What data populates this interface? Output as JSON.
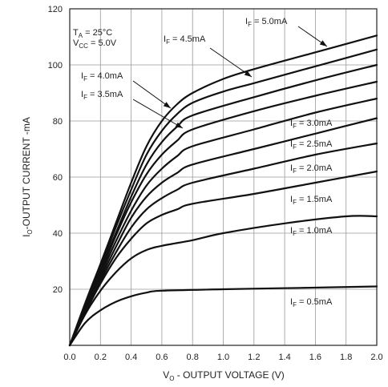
{
  "chart_data": {
    "type": "line",
    "xlabel": {
      "main": "V",
      "sub": "O",
      "rest": " - OUTPUT VOLTAGE (V)"
    },
    "ylabel": {
      "main": "I",
      "sub": "O",
      "rest": "-OUTPUT CURRENT -mA"
    },
    "xlim": [
      0,
      2.0
    ],
    "ylim": [
      0,
      120
    ],
    "x_ticks": [
      "0.0",
      "0.2",
      "0.4",
      "0.6",
      "0.8",
      "1.0",
      "1.2",
      "1.4",
      "1.6",
      "1.8",
      "2.0"
    ],
    "y_ticks": [
      "20",
      "40",
      "60",
      "80",
      "100",
      "120"
    ],
    "grid": true,
    "conditions": [
      {
        "main": "T",
        "sub": "A",
        "rest": " = 25°C"
      },
      {
        "main": "V",
        "sub": "CC",
        "rest": " = 5.0V"
      }
    ],
    "series": [
      {
        "name": {
          "main": "I",
          "sub": "F",
          "rest": " = 0.5mA"
        },
        "x": [
          0,
          0.1,
          0.2,
          0.3,
          0.4,
          0.5,
          0.6,
          1.0,
          1.5,
          2.0
        ],
        "y": [
          0,
          8,
          12.5,
          15.5,
          17.5,
          18.8,
          19.5,
          20,
          20.5,
          21
        ]
      },
      {
        "name": {
          "main": "I",
          "sub": "F",
          "rest": " = 1.0mA"
        },
        "x": [
          0,
          0.1,
          0.2,
          0.3,
          0.4,
          0.5,
          0.6,
          0.8,
          1.0,
          1.4,
          1.8,
          2.0
        ],
        "y": [
          0,
          11,
          19.5,
          26,
          31,
          34,
          35.5,
          37.5,
          40,
          43.5,
          46,
          46
        ]
      },
      {
        "name": {
          "main": "I",
          "sub": "F",
          "rest": " = 1.5mA"
        },
        "x": [
          0,
          0.1,
          0.2,
          0.3,
          0.4,
          0.5,
          0.6,
          0.7,
          0.8,
          1.2,
          1.6,
          2.0
        ],
        "y": [
          0,
          11.5,
          22,
          31,
          38,
          43.5,
          46.5,
          48.5,
          50.5,
          54,
          58,
          62
        ]
      },
      {
        "name": {
          "main": "I",
          "sub": "F",
          "rest": " = 2.0mA"
        },
        "x": [
          0,
          0.1,
          0.2,
          0.3,
          0.4,
          0.5,
          0.6,
          0.7,
          0.8,
          1.2,
          1.6,
          2.0
        ],
        "y": [
          0,
          12,
          23,
          33,
          42,
          48.5,
          52.5,
          55.5,
          58,
          63,
          68,
          72
        ]
      },
      {
        "name": {
          "main": "I",
          "sub": "F",
          "rest": " = 2.5mA"
        },
        "x": [
          0,
          0.1,
          0.2,
          0.3,
          0.4,
          0.5,
          0.6,
          0.7,
          0.8,
          1.2,
          1.6,
          2.0
        ],
        "y": [
          0,
          12.5,
          24,
          35,
          45.5,
          53,
          58,
          61.5,
          64.5,
          70,
          75.5,
          81
        ]
      },
      {
        "name": {
          "main": "I",
          "sub": "F",
          "rest": " = 3.0mA"
        },
        "x": [
          0,
          0.1,
          0.2,
          0.3,
          0.4,
          0.5,
          0.6,
          0.7,
          0.8,
          1.2,
          1.6,
          2.0
        ],
        "y": [
          0,
          13,
          25,
          37,
          48,
          57,
          63,
          67.5,
          71,
          77,
          83,
          88
        ]
      },
      {
        "name": {
          "main": "I",
          "sub": "F",
          "rest": " = 3.5mA"
        },
        "x": [
          0,
          0.1,
          0.2,
          0.3,
          0.4,
          0.5,
          0.6,
          0.7,
          0.8,
          1.2,
          1.6,
          2.0
        ],
        "y": [
          0,
          13.5,
          26,
          39,
          51,
          61,
          68,
          73,
          77,
          83.5,
          89,
          94
        ]
      },
      {
        "name": {
          "main": "I",
          "sub": "F",
          "rest": " = 4.0mA"
        },
        "x": [
          0,
          0.1,
          0.2,
          0.3,
          0.4,
          0.5,
          0.6,
          0.7,
          0.8,
          1.2,
          1.6,
          2.0
        ],
        "y": [
          0,
          14,
          27,
          40,
          53,
          64.5,
          72.5,
          78,
          82,
          88.5,
          94.5,
          100
        ]
      },
      {
        "name": {
          "main": "I",
          "sub": "F",
          "rest": " = 4.5mA"
        },
        "x": [
          0,
          0.1,
          0.2,
          0.3,
          0.4,
          0.5,
          0.6,
          0.7,
          0.8,
          1.0,
          1.2,
          1.6,
          2.0
        ],
        "y": [
          0,
          14.5,
          28,
          42,
          55.5,
          68,
          76.5,
          82.5,
          86.5,
          90.5,
          93.5,
          99.5,
          105.5
        ]
      },
      {
        "name": {
          "main": "I",
          "sub": "F",
          "rest": " = 5.0mA"
        },
        "x": [
          0,
          0.1,
          0.2,
          0.3,
          0.4,
          0.5,
          0.6,
          0.7,
          0.8,
          1.0,
          1.2,
          1.6,
          2.0
        ],
        "y": [
          0,
          15,
          29,
          43.5,
          58,
          71,
          80,
          86,
          90,
          95,
          98.5,
          104.5,
          110.5
        ]
      }
    ]
  }
}
